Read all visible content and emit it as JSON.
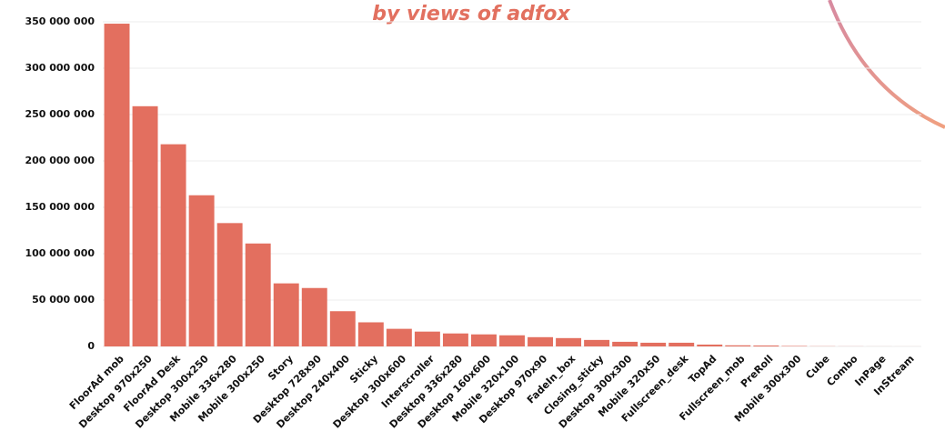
{
  "chart_data": {
    "type": "bar",
    "title": "by views of adfox",
    "categories": [
      "FloorAd mob",
      "Desktop 970x250",
      "FloorAd Desk",
      "Desktop 300x250",
      "Mobile 336x280",
      "Mobile 300x250",
      "Story",
      "Desktop 728x90",
      "Desktop 240x400",
      "Sticky",
      "Desktop 300x600",
      "Interscroller",
      "Desktop 336x280",
      "Desktop 160x600",
      "Mobile 320x100",
      "Desktop 970x90",
      "FadeIn_box",
      "Closing_sticky",
      "Desktop 300x300",
      "Mobile 320x50",
      "Fullscreen_desk",
      "TopAd",
      "Fullscreen_mob",
      "PreRoll",
      "Mobile 300x300",
      "Cube",
      "Combo",
      "InPage",
      "InStream"
    ],
    "values": [
      348000000,
      259000000,
      218000000,
      163000000,
      133000000,
      111000000,
      68000000,
      63000000,
      38000000,
      26000000,
      19000000,
      16000000,
      14000000,
      13000000,
      12000000,
      10000000,
      9000000,
      7000000,
      5000000,
      4000000,
      4000000,
      2000000,
      1200000,
      1000000,
      500000,
      200000,
      100000,
      50000,
      30000
    ],
    "color": "#e36f5f",
    "ylim": [
      0,
      350000000
    ],
    "yticks": [
      {
        "value": 0,
        "label": "0"
      },
      {
        "value": 50000000,
        "label": "50 000 000"
      },
      {
        "value": 100000000,
        "label": "100 000 000"
      },
      {
        "value": 150000000,
        "label": "150 000 000"
      },
      {
        "value": 200000000,
        "label": "200 000 000"
      },
      {
        "value": 250000000,
        "label": "250 000 000"
      },
      {
        "value": 300000000,
        "label": "300 000 000"
      },
      {
        "value": 350000000,
        "label": "350 000 000"
      }
    ],
    "grid": true
  }
}
